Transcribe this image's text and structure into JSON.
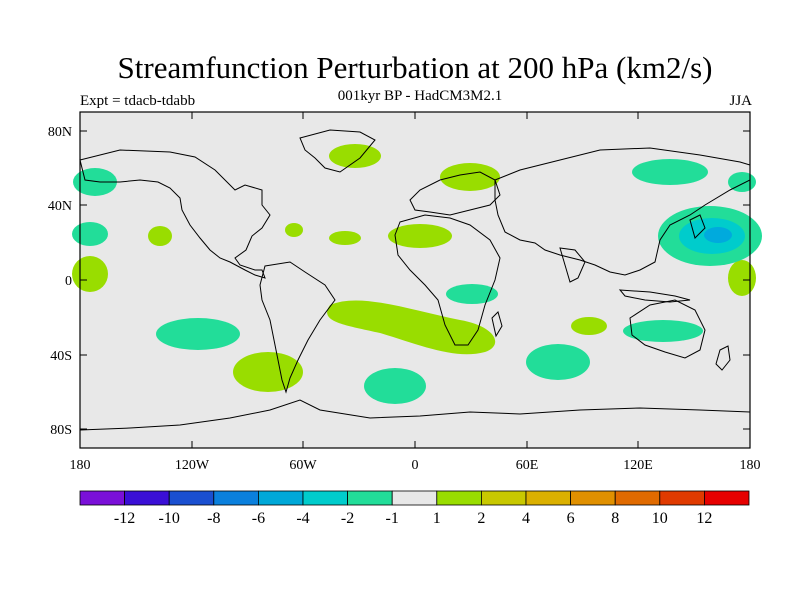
{
  "title": "Streamfunction Perturbation at 200 hPa (km2/s)",
  "subtitle": "001kyr BP - HadCM3M2.1",
  "experiment": "Expt = tdacb-tdabb",
  "season": "JJA",
  "colors": {
    "background": "#e8e8e8",
    "coast": "#000000",
    "pos_light": "#99dd00",
    "neg_light": "#22dd99",
    "neg_mid": "#00cccc",
    "neg_strong": "#00aadd"
  },
  "axes": {
    "x_ticks": [
      "180",
      "120W",
      "60W",
      "0",
      "60E",
      "120E",
      "180"
    ],
    "y_ticks": [
      "80N",
      "40N",
      "0",
      "40S",
      "80S"
    ]
  },
  "colorbar": {
    "colors": [
      "#7a10d8",
      "#3a0fd6",
      "#1a4fd0",
      "#0a80dd",
      "#00a8d8",
      "#00cccc",
      "#22dd99",
      "#e8e8e8",
      "#99dd00",
      "#c8c800",
      "#dbb000",
      "#e09000",
      "#e06a00",
      "#e03a00",
      "#e60000"
    ],
    "labels": [
      "-12",
      "-10",
      "-8",
      "-6",
      "-4",
      "-2",
      "-1",
      "1",
      "2",
      "4",
      "6",
      "8",
      "10",
      "12"
    ]
  }
}
